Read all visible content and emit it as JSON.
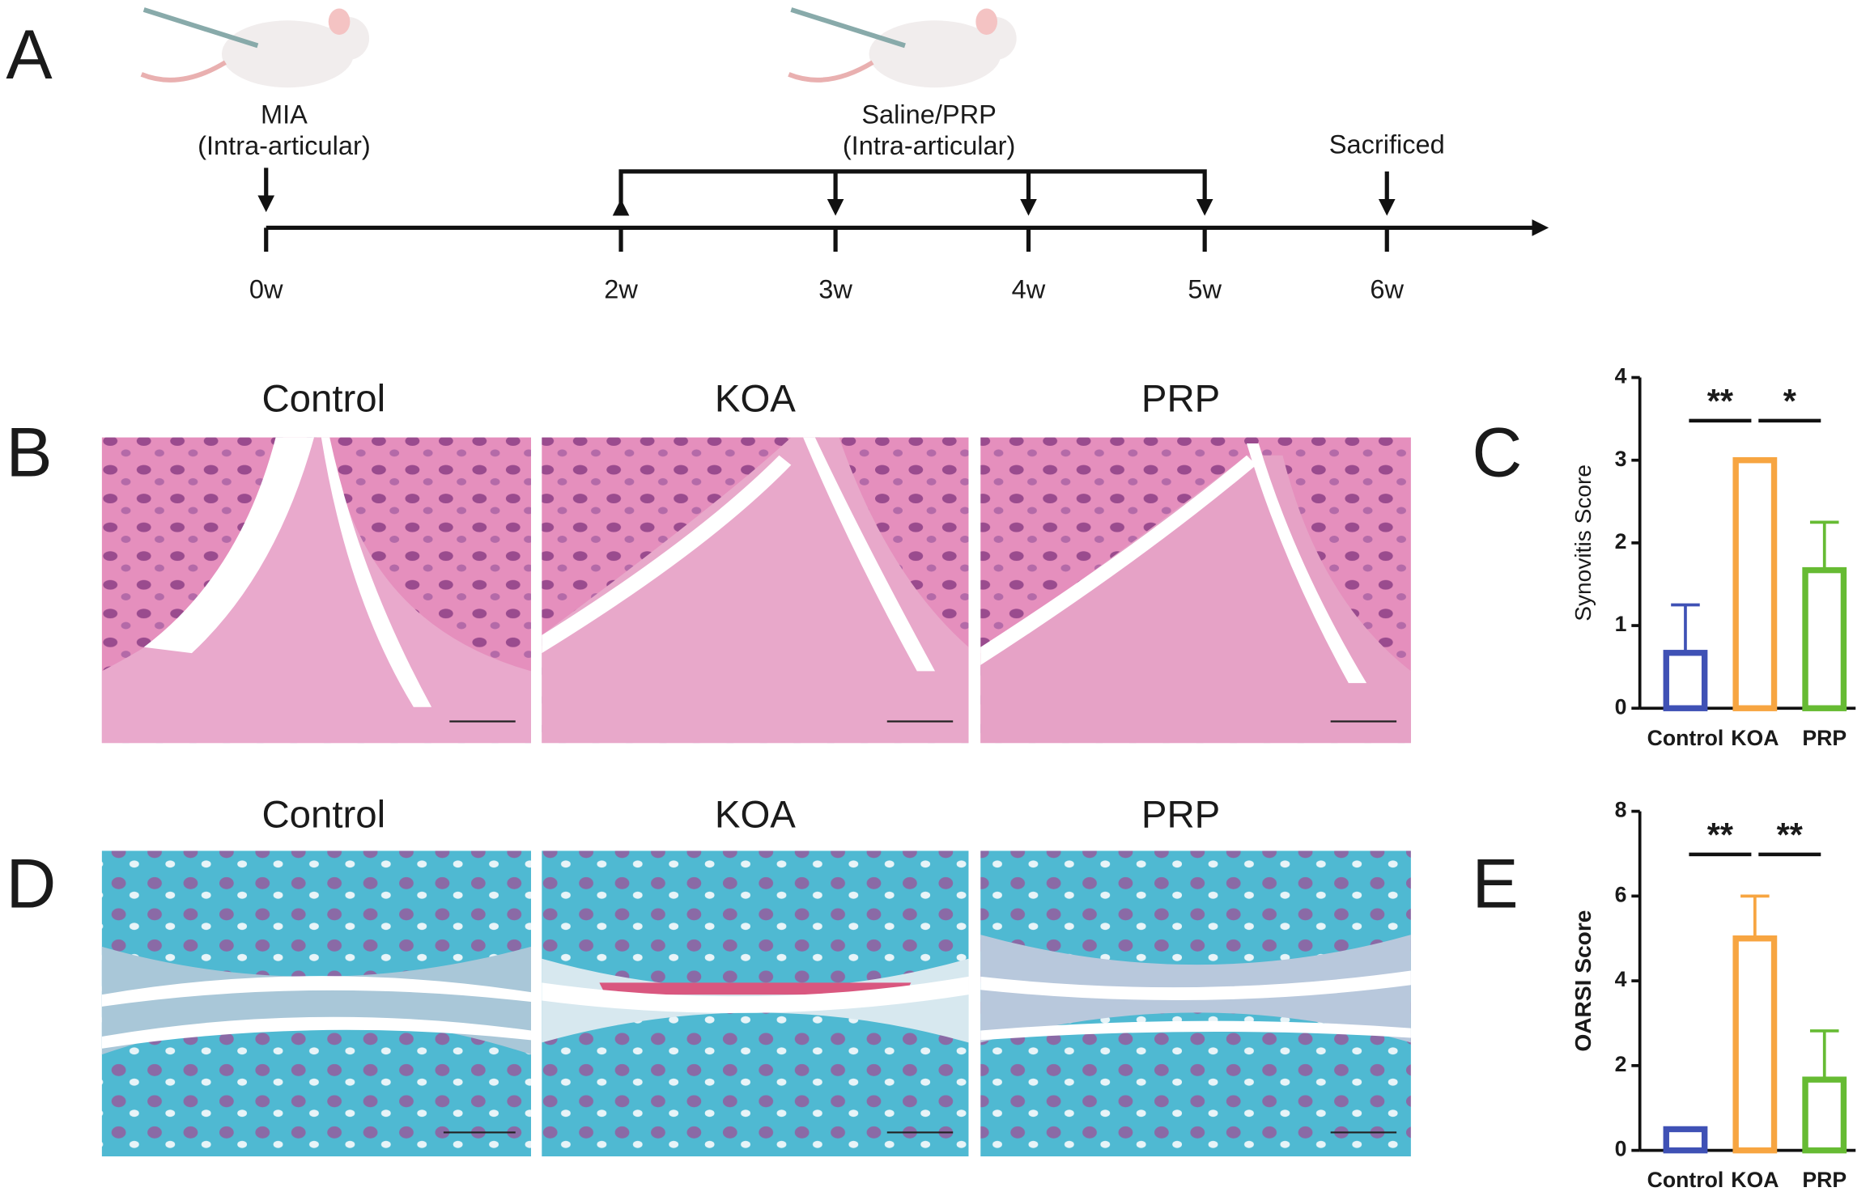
{
  "panels": {
    "A": {
      "letter": "A",
      "events": [
        {
          "label": "MIA",
          "sub": "(Intra-articular)"
        },
        {
          "label": "Saline/PRP",
          "sub": "(Intra-articular)"
        },
        {
          "label": "Sacrificed"
        }
      ],
      "ticks": [
        "0w",
        "2w",
        "3w",
        "4w",
        "5w",
        "6w"
      ]
    },
    "B": {
      "letter": "B",
      "labels": [
        "Control",
        "KOA",
        "PRP"
      ]
    },
    "C": {
      "letter": "C"
    },
    "D": {
      "letter": "D",
      "labels": [
        "Control",
        "KOA",
        "PRP"
      ]
    },
    "E": {
      "letter": "E"
    }
  },
  "chart_data": [
    {
      "type": "bar",
      "ylabel": "Synovitis Score",
      "categories": [
        "Control",
        "KOA",
        "PRP"
      ],
      "values": [
        0.67,
        3,
        1.67
      ],
      "errors": [
        0.58,
        0,
        0.58
      ],
      "colors": [
        "#3f51b5",
        "#f7a541",
        "#66bb33"
      ],
      "ylim": [
        0,
        4
      ],
      "yticks": [
        0,
        1,
        2,
        3,
        4
      ],
      "annotations": [
        "**",
        "*"
      ]
    },
    {
      "type": "bar",
      "ylabel": "OARSI Score",
      "categories": [
        "Control",
        "KOA",
        "PRP"
      ],
      "values": [
        0.5,
        5,
        1.67
      ],
      "errors": [
        0,
        1,
        1.15
      ],
      "colors": [
        "#3f51b5",
        "#f7a541",
        "#66bb33"
      ],
      "ylim": [
        0,
        8
      ],
      "yticks": [
        0,
        2,
        4,
        6,
        8
      ],
      "annotations": [
        "**",
        "**"
      ]
    }
  ]
}
